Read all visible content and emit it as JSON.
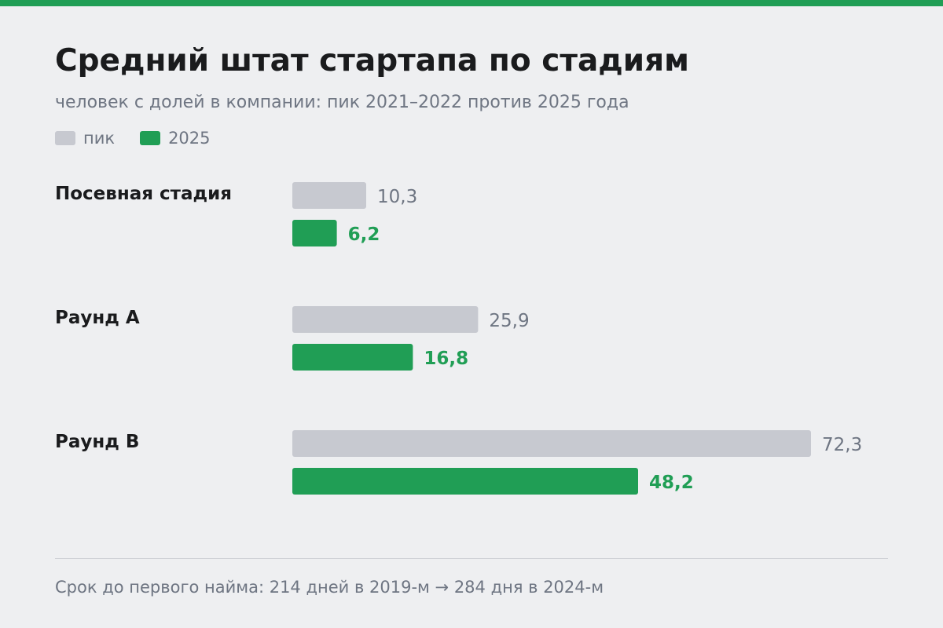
{
  "header": {
    "title": "Средний штат стартапа по стадиям",
    "subtitle": "человек с долей в компании: пик 2021–2022 против 2025 года"
  },
  "legend": {
    "peak_label": "пик",
    "current_label": "2025"
  },
  "colors": {
    "accent": "#209e55",
    "peak_bar": "#c7c9d0",
    "current_bar": "#209e55",
    "background": "#eeeff1",
    "muted_text": "#6e7582"
  },
  "chart_data": {
    "type": "bar",
    "orientation": "horizontal",
    "categories": [
      "Посевная стадия",
      "Раунд A",
      "Раунд B"
    ],
    "series": [
      {
        "name": "пик",
        "values": [
          10.3,
          25.9,
          72.3
        ],
        "labels": [
          "10,3",
          "25,9",
          "72,3"
        ]
      },
      {
        "name": "2025",
        "values": [
          6.2,
          16.8,
          48.2
        ],
        "labels": [
          "6,2",
          "16,8",
          "48,2"
        ]
      }
    ],
    "xlim": [
      0,
      72.3
    ],
    "grid": false,
    "legend_position": "top-left"
  },
  "footer": {
    "note": "Срок до первого найма: 214 дней в 2019-м → 284 дня в 2024-м"
  }
}
